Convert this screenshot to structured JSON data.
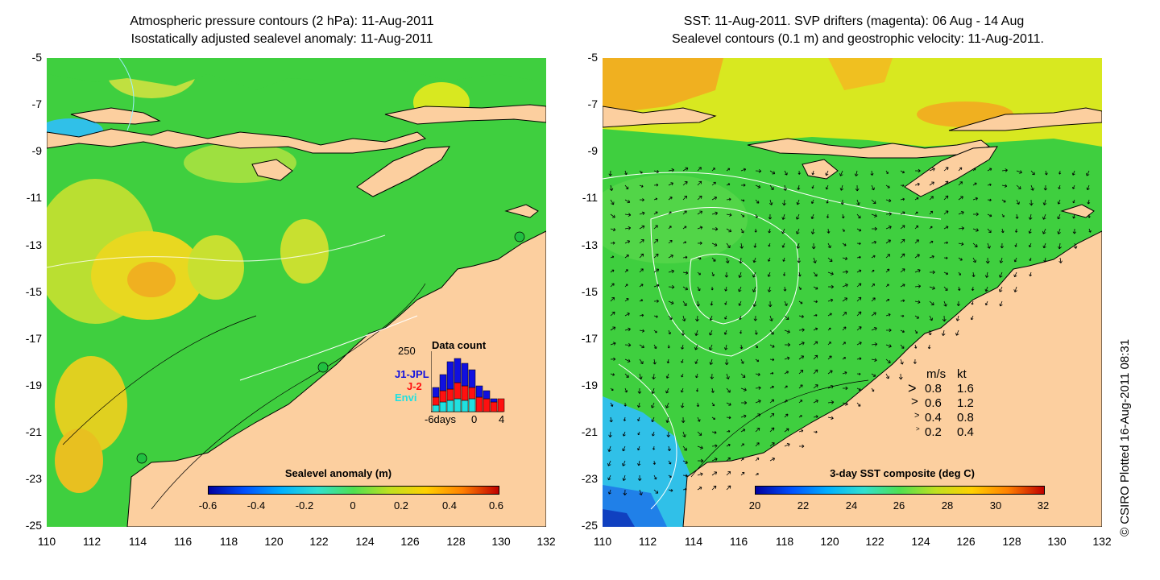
{
  "left_panel": {
    "title_line1": "Atmospheric pressure contours (2 hPa): 11-Aug-2011",
    "title_line2": "Isostatically adjusted sealevel anomaly: 11-Aug-2011",
    "colorbar": {
      "title": "Sealevel anomaly (m)",
      "labels": [
        "-0.6",
        "-0.4",
        "-0.2",
        "0",
        "0.2",
        "0.4",
        "0.6"
      ]
    },
    "inset": {
      "title": "Data count",
      "ymax_label": "250",
      "series": [
        {
          "name": "J1-JPL",
          "color": "#1010e0"
        },
        {
          "name": "J-2",
          "color": "#ff1010"
        },
        {
          "name": "Envi",
          "color": "#20e0e0"
        }
      ],
      "xlabel": "-6days",
      "x_ticks": [
        "0",
        "4"
      ]
    }
  },
  "right_panel": {
    "title_line1": "SST: 11-Aug-2011. SVP drifters (magenta): 06 Aug - 14 Aug",
    "title_line2": "Sealevel contours (0.1 m) and geostrophic velocity: 11-Aug-2011.",
    "colorbar": {
      "title": "3-day SST composite (deg C)",
      "labels": [
        "20",
        "22",
        "24",
        "26",
        "28",
        "30",
        "32"
      ]
    },
    "velocity_legend": {
      "header_ms": "m/s",
      "header_kt": "kt",
      "rows": [
        {
          "ms": "0.8",
          "kt": "1.6"
        },
        {
          "ms": "0.6",
          "kt": "1.2"
        },
        {
          "ms": "0.4",
          "kt": "0.8"
        },
        {
          "ms": "0.2",
          "kt": "0.4"
        }
      ]
    }
  },
  "axes": {
    "y_labels": [
      "-5",
      "-7",
      "-9",
      "-11",
      "-13",
      "-15",
      "-17",
      "-19",
      "-21",
      "-23",
      "-25"
    ],
    "x_labels": [
      "110",
      "112",
      "114",
      "116",
      "118",
      "120",
      "122",
      "124",
      "126",
      "128",
      "130",
      "132"
    ]
  },
  "credit": "© CSIRO Plotted 16-Aug-2011 08:31",
  "colors": {
    "land": "#fccf9f",
    "ocean_green": "#3fcf3f",
    "ocean_yellow": "#d8e820",
    "ocean_orange": "#f0b020",
    "ocean_cyan": "#30c0e8"
  }
}
